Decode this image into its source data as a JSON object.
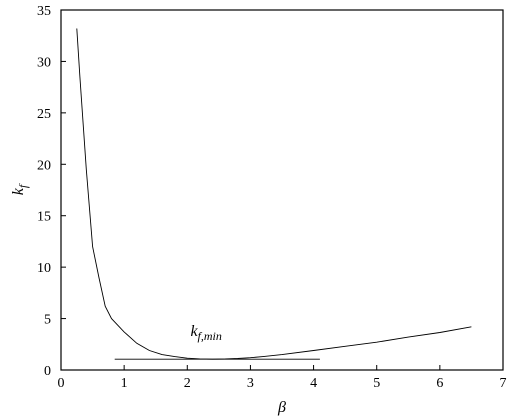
{
  "chart_data": {
    "type": "line",
    "xlabel": "β",
    "ylabel": "k",
    "ylabel_subscript": "f",
    "xlim": [
      0,
      7
    ],
    "ylim": [
      0,
      35
    ],
    "x_ticks": [
      "0",
      "1",
      "2",
      "3",
      "4",
      "5",
      "6",
      "7"
    ],
    "y_ticks": [
      "0",
      "5",
      "10",
      "15",
      "20",
      "25",
      "30",
      "35"
    ],
    "grid": false,
    "series": [
      {
        "x": [
          0.25,
          0.3,
          0.4,
          0.5,
          0.6,
          0.7,
          0.8,
          1.0,
          1.2,
          1.4,
          1.6,
          1.8,
          2.0,
          2.2,
          2.4,
          2.6,
          2.8,
          3.0,
          3.2,
          3.5,
          4.0,
          4.5,
          5.0,
          5.5,
          6.0,
          6.5
        ],
        "y": [
          33.2,
          28.5,
          19.5,
          12.0,
          9.0,
          6.2,
          5.0,
          3.7,
          2.6,
          1.9,
          1.5,
          1.3,
          1.15,
          1.08,
          1.05,
          1.07,
          1.12,
          1.2,
          1.3,
          1.5,
          1.9,
          2.3,
          2.7,
          3.2,
          3.65,
          4.2
        ]
      }
    ],
    "reference_line": {
      "x": [
        0.85,
        4.1
      ],
      "y": 1.05
    },
    "annotation": {
      "main": "k",
      "sub": "f,min",
      "x": 2.05,
      "y": 3.3
    },
    "colors": {
      "line": "#000000",
      "axes": "#000000"
    }
  }
}
